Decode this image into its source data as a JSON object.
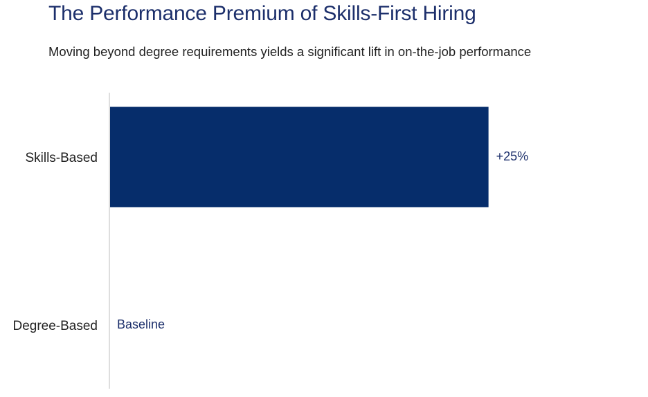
{
  "chart_data": {
    "type": "bar",
    "orientation": "horizontal",
    "title": "The Performance Premium of Skills-First Hiring",
    "subtitle": "Moving beyond degree requirements yields a significant lift in on-the-job performance",
    "categories": [
      "Skills-Based",
      "Degree-Based"
    ],
    "values": [
      25,
      0
    ],
    "data_labels": [
      "+25%",
      "Baseline"
    ],
    "xlim": [
      0,
      31.5
    ],
    "grid": false,
    "legend": "none",
    "colors": {
      "bar": "#062d6b",
      "axis_line": "#c8c8c8",
      "label_text": "#1c2f6b",
      "category_text": "#222222"
    }
  }
}
